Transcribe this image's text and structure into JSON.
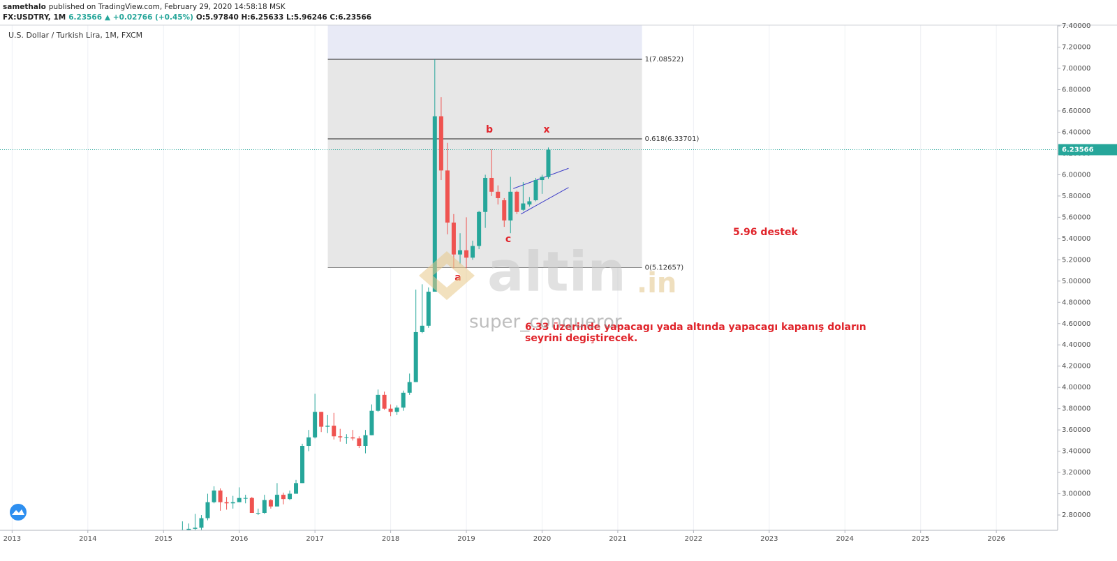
{
  "header": {
    "publisher": "samethalo",
    "published": "published on TradingView.com, February 29, 2020 14:58:18 MSK",
    "symbol": "FX:USDTRY, 1M",
    "last": "6.23566",
    "change": "▲ +0.02766 (+0.45%)",
    "ohlc": "O:5.97840 H:6.25633 L:5.96246 C:6.23566"
  },
  "watermark": {
    "brand": "altin",
    "tld": ".in",
    "user": "super_conqueror"
  },
  "chart_data": {
    "type": "candlestick",
    "title": "U.S. Dollar / Turkish Lira, 1M, FXCM",
    "up_color": "#26a69a",
    "down_color": "#ef5350",
    "grid": true,
    "x": [
      2015.25,
      2015.333,
      2015.417,
      2015.5,
      2015.583,
      2015.667,
      2015.75,
      2015.833,
      2015.917,
      2016,
      2016.083,
      2016.167,
      2016.25,
      2016.333,
      2016.417,
      2016.5,
      2016.583,
      2016.667,
      2016.75,
      2016.833,
      2016.917,
      2017,
      2017.083,
      2017.167,
      2017.25,
      2017.333,
      2017.417,
      2017.5,
      2017.583,
      2017.667,
      2017.75,
      2017.833,
      2017.917,
      2018,
      2018.083,
      2018.167,
      2018.25,
      2018.333,
      2018.417,
      2018.5,
      2018.583,
      2018.667,
      2018.75,
      2018.833,
      2018.917,
      2019,
      2019.083,
      2019.167,
      2019.25,
      2019.333,
      2019.417,
      2019.5,
      2019.583,
      2019.667,
      2019.75,
      2019.833,
      2019.917,
      2020,
      2020.083
    ],
    "open": [
      2.6,
      2.66,
      2.67,
      2.68,
      2.77,
      2.92,
      3.03,
      2.92,
      2.91,
      2.92,
      2.96,
      2.96,
      2.82,
      2.82,
      2.94,
      2.88,
      2.99,
      2.95,
      3.0,
      3.1,
      3.45,
      3.53,
      3.77,
      3.63,
      3.64,
      3.54,
      3.53,
      3.53,
      3.52,
      3.45,
      3.55,
      3.78,
      3.93,
      3.8,
      3.77,
      3.81,
      3.95,
      4.05,
      4.52,
      4.58,
      4.9,
      6.55,
      6.04,
      5.55,
      5.25,
      5.29,
      5.22,
      5.33,
      5.65,
      5.97,
      5.84,
      5.76,
      5.57,
      5.84,
      5.67,
      5.72,
      5.76,
      5.95,
      5.9784
    ],
    "high": [
      2.74,
      2.72,
      2.81,
      2.8,
      3.0,
      3.07,
      3.05,
      2.97,
      2.98,
      3.06,
      2.99,
      2.97,
      2.86,
      2.99,
      2.95,
      3.1,
      3.01,
      3.03,
      3.13,
      3.47,
      3.6,
      3.94,
      3.77,
      3.74,
      3.76,
      3.61,
      3.56,
      3.6,
      3.54,
      3.6,
      3.84,
      3.98,
      3.96,
      3.84,
      3.83,
      3.97,
      4.13,
      4.92,
      4.97,
      4.94,
      7.085,
      6.73,
      6.3,
      5.63,
      5.45,
      5.6,
      5.38,
      5.66,
      6.0,
      6.24,
      5.9,
      5.78,
      5.98,
      5.85,
      5.93,
      5.79,
      5.97,
      6.0,
      6.25633
    ],
    "low": [
      2.59,
      2.58,
      2.65,
      2.66,
      2.75,
      2.91,
      2.84,
      2.85,
      2.86,
      2.92,
      2.91,
      2.82,
      2.8,
      2.81,
      2.86,
      2.88,
      2.9,
      2.94,
      3.0,
      3.1,
      3.4,
      3.52,
      3.58,
      3.57,
      3.51,
      3.49,
      3.47,
      3.5,
      3.43,
      3.38,
      3.55,
      3.77,
      3.79,
      3.73,
      3.74,
      3.78,
      3.93,
      4.05,
      4.51,
      4.56,
      4.9,
      5.95,
      5.44,
      5.12,
      5.16,
      5.12,
      5.2,
      5.3,
      5.5,
      5.8,
      5.72,
      5.51,
      5.45,
      5.63,
      5.66,
      5.7,
      5.75,
      5.82,
      5.96246
    ],
    "close": [
      2.66,
      2.67,
      2.68,
      2.77,
      2.92,
      3.03,
      2.92,
      2.91,
      2.92,
      2.96,
      2.96,
      2.82,
      2.82,
      2.94,
      2.88,
      2.99,
      2.95,
      3.0,
      3.1,
      3.45,
      3.53,
      3.77,
      3.63,
      3.64,
      3.54,
      3.53,
      3.53,
      3.52,
      3.45,
      3.55,
      3.78,
      3.93,
      3.8,
      3.77,
      3.81,
      3.95,
      4.05,
      4.52,
      4.58,
      4.9,
      6.55,
      6.04,
      5.55,
      5.25,
      5.29,
      5.22,
      5.33,
      5.65,
      5.97,
      5.84,
      5.78,
      5.57,
      5.84,
      5.65,
      5.73,
      5.75,
      5.95,
      5.98,
      6.23566
    ],
    "xlim": [
      2012.84,
      2026.81
    ],
    "xticks": [
      2013,
      2014,
      2015,
      2016,
      2017,
      2018,
      2019,
      2020,
      2021,
      2022,
      2023,
      2024,
      2025,
      2026
    ],
    "ylim": [
      2.656,
      7.407
    ],
    "yticks": [
      {
        "value": 7.4,
        "label": "7.40000"
      },
      {
        "value": 7.2,
        "label": "7.20000"
      },
      {
        "value": 7.0,
        "label": "7.00000"
      },
      {
        "value": 6.8,
        "label": "6.80000"
      },
      {
        "value": 6.6,
        "label": "6.60000"
      },
      {
        "value": 6.4,
        "label": "6.40000"
      },
      {
        "value": 6.2,
        "label": "6.20000"
      },
      {
        "value": 6.0,
        "label": "6.00000"
      },
      {
        "value": 5.8,
        "label": "5.80000"
      },
      {
        "value": 5.6,
        "label": "5.60000"
      },
      {
        "value": 5.4,
        "label": "5.40000"
      },
      {
        "value": 5.2,
        "label": "5.20000"
      },
      {
        "value": 5.0,
        "label": "5.00000"
      },
      {
        "value": 4.8,
        "label": "4.80000"
      },
      {
        "value": 4.6,
        "label": "4.60000"
      },
      {
        "value": 4.4,
        "label": "4.40000"
      },
      {
        "value": 4.2,
        "label": "4.20000"
      },
      {
        "value": 4.0,
        "label": "4.00000"
      },
      {
        "value": 3.8,
        "label": "3.80000"
      },
      {
        "value": 3.6,
        "label": "3.60000"
      },
      {
        "value": 3.4,
        "label": "3.40000"
      },
      {
        "value": 3.2,
        "label": "3.20000"
      },
      {
        "value": 3.0,
        "label": "3.00000"
      },
      {
        "value": 2.8,
        "label": "2.80000"
      }
    ],
    "last_price": 6.23566,
    "fib_x": [
      2017.17,
      2021.32
    ],
    "fib_levels": [
      {
        "value": 7.08522,
        "label": "1(7.08522)"
      },
      {
        "value": 6.33701,
        "label": "0.618(6.33701)"
      },
      {
        "value": 5.12657,
        "label": "0(5.12657)"
      }
    ],
    "channel": [
      {
        "x": [
          2019.62,
          2020.35
        ],
        "y": [
          5.87,
          6.06
        ]
      },
      {
        "x": [
          2019.72,
          2020.35
        ],
        "y": [
          5.63,
          5.88
        ]
      }
    ],
    "wave_labels": [
      "a",
      "b",
      "c",
      "x"
    ],
    "annotations": [
      "5.96 destek",
      "6.33 üzerinde yapacagı yada altında yapacagı kapanış doların",
      "seyrini degiştirecek."
    ]
  }
}
